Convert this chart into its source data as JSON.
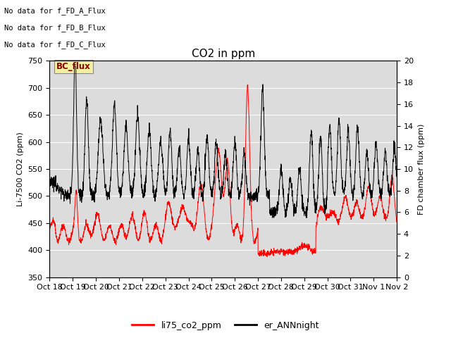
{
  "title": "CO2 in ppm",
  "ylabel_left": "Li-7500 CO2 (ppm)",
  "ylabel_right": "FD chamber flux (ppm)",
  "ylim_left": [
    350,
    750
  ],
  "ylim_right": [
    0,
    20
  ],
  "yticks_left": [
    350,
    400,
    450,
    500,
    550,
    600,
    650,
    700,
    750
  ],
  "yticks_right": [
    0,
    2,
    4,
    6,
    8,
    10,
    12,
    14,
    16,
    18,
    20
  ],
  "xtick_labels": [
    "Oct 18",
    "Oct 19",
    "Oct 20",
    "Oct 21",
    "Oct 22",
    "Oct 23",
    "Oct 24",
    "Oct 25",
    "Oct 26",
    "Oct 27",
    "Oct 28",
    "Oct 29",
    "Oct 30",
    "Oct 31",
    "Nov 1",
    "Nov 2"
  ],
  "no_data_texts": [
    "No data for f_FD_A_Flux",
    "No data for f_FD_B_Flux",
    "No data for f_FD_C_Flux"
  ],
  "bc_flux_label": "BC_flux",
  "legend_entries": [
    "li75_co2_ppm",
    "er_ANNnight"
  ],
  "plot_bg_color": "#dcdcdc",
  "line_co2_color": "red",
  "line_er_color": "black",
  "num_points": 2000,
  "seed": 42
}
